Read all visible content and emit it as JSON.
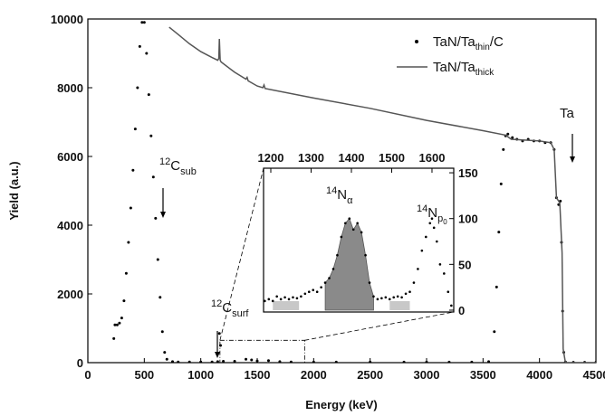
{
  "chart_data": {
    "type": "scatter-line",
    "xlabel": "Energy (keV)",
    "ylabel": "Yield (a.u.)",
    "xlim": [
      0,
      4500
    ],
    "ylim": [
      0,
      10000
    ],
    "xticks": [
      0,
      500,
      1000,
      1500,
      2000,
      2500,
      3000,
      3500,
      4000,
      4500
    ],
    "yticks": [
      0,
      2000,
      4000,
      6000,
      8000,
      10000
    ],
    "series": [
      {
        "name": "TaN/Ta",
        "name_sub": "thin",
        "name_tail": "/C",
        "style": "dots",
        "color": "#000000",
        "x": [
          230,
          240,
          260,
          280,
          300,
          320,
          340,
          360,
          380,
          400,
          420,
          440,
          460,
          480,
          500,
          520,
          540,
          560,
          580,
          600,
          620,
          640,
          660,
          680,
          700,
          750,
          800,
          900,
          1000,
          1100,
          1150,
          1165,
          1175,
          1200,
          1300,
          1400,
          1450,
          1500,
          1600,
          1700,
          1800,
          2000,
          2200,
          2500,
          2800,
          3000,
          3200,
          3400,
          3550,
          3600,
          3620,
          3640,
          3660,
          3680,
          3700,
          3720,
          3760,
          3800,
          3850,
          3900,
          3950,
          4000,
          4050,
          4100,
          4130,
          4150,
          4170,
          4185,
          4195,
          4205,
          4215,
          4230,
          4300,
          4400,
          4500
        ],
        "values": [
          700,
          1100,
          1100,
          1150,
          1300,
          1800,
          2600,
          3500,
          4500,
          5600,
          6800,
          8000,
          9200,
          9900,
          9900,
          9000,
          7800,
          6600,
          5400,
          4200,
          3000,
          1900,
          900,
          300,
          100,
          30,
          20,
          20,
          20,
          20,
          30,
          850,
          500,
          40,
          40,
          100,
          80,
          50,
          60,
          30,
          20,
          15,
          15,
          15,
          15,
          15,
          15,
          15,
          30,
          900,
          2200,
          3800,
          5200,
          6200,
          6600,
          6650,
          6550,
          6500,
          6450,
          6500,
          6450,
          6450,
          6400,
          6400,
          6200,
          4800,
          4600,
          4700,
          3500,
          1500,
          300,
          20,
          10,
          10,
          10
        ]
      },
      {
        "name": "TaN/Ta",
        "name_sub": "thick",
        "style": "line",
        "color": "#555555",
        "x": [
          720,
          800,
          900,
          1000,
          1100,
          1150,
          1160,
          1165,
          1172,
          1180,
          1300,
          1400,
          1410,
          1420,
          1500,
          1550,
          1560,
          1570,
          2000,
          2500,
          3000,
          3500,
          3700,
          3750,
          4000,
          4100,
          4130,
          4150,
          4180,
          4200,
          4210,
          4230,
          4500
        ],
        "values": [
          9760,
          9550,
          9280,
          9050,
          8880,
          8800,
          8850,
          9420,
          8800,
          8750,
          8450,
          8250,
          8300,
          8200,
          8050,
          8000,
          8080,
          7980,
          7700,
          7400,
          7050,
          6750,
          6620,
          6500,
          6450,
          6400,
          6200,
          4800,
          4650,
          3200,
          400,
          0,
          0
        ]
      }
    ],
    "legend": "upper right",
    "zoom_box": {
      "xlim": [
        1170,
        1920
      ],
      "ylim": [
        0,
        650
      ]
    },
    "annotations": [
      {
        "sup": "12",
        "base": "C",
        "sub": "sub"
      },
      {
        "sup": "12",
        "base": "C",
        "sub": "surf"
      },
      {
        "base": "Ta"
      }
    ],
    "inset": {
      "type": "scatter",
      "xlim": [
        1182,
        1654
      ],
      "ylim": [
        -2,
        155
      ],
      "xticks": [
        1200,
        1300,
        1400,
        1500,
        1600
      ],
      "yticks": [
        0,
        50,
        100,
        150
      ],
      "signal_range": [
        1335,
        1455
      ],
      "background_ranges": [
        [
          1205,
          1270
        ],
        [
          1495,
          1545
        ]
      ],
      "series": [
        {
          "color": "#000000",
          "x": [
            1185,
            1195,
            1205,
            1215,
            1225,
            1235,
            1245,
            1255,
            1265,
            1275,
            1285,
            1295,
            1305,
            1315,
            1325,
            1335,
            1345,
            1355,
            1365,
            1375,
            1385,
            1395,
            1405,
            1415,
            1425,
            1435,
            1445,
            1455,
            1465,
            1475,
            1485,
            1495,
            1505,
            1515,
            1525,
            1535,
            1545,
            1555,
            1565,
            1575,
            1585,
            1595,
            1600,
            1605,
            1612,
            1620,
            1630,
            1640,
            1648
          ],
          "values": [
            10,
            12,
            10,
            15,
            12,
            14,
            12,
            14,
            13,
            15,
            18,
            20,
            22,
            20,
            25,
            30,
            35,
            45,
            60,
            80,
            95,
            100,
            88,
            95,
            85,
            60,
            30,
            15,
            12,
            13,
            14,
            12,
            14,
            15,
            14,
            18,
            20,
            30,
            45,
            65,
            80,
            95,
            100,
            90,
            75,
            50,
            40,
            20,
            5
          ]
        }
      ],
      "annotations": [
        {
          "sup": "14",
          "base": "N",
          "sub": "α"
        },
        {
          "sup": "14",
          "base": "N",
          "sub": "p",
          "subsub": "0"
        }
      ]
    }
  }
}
